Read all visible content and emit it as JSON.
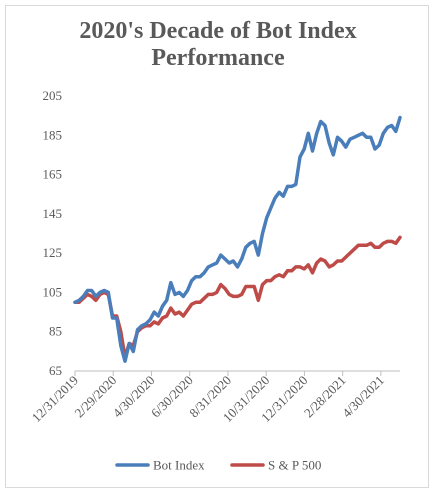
{
  "chart_data": {
    "type": "line",
    "title_line1": "2020's Decade of Bot Index",
    "title_line2": "Performance",
    "ylim": [
      65,
      205
    ],
    "y_ticks": [
      "205",
      "185",
      "165",
      "145",
      "125",
      "105",
      "85",
      "65"
    ],
    "x_tick_labels": [
      "12/31/2019",
      "2/29/2020",
      "4/30/2020",
      "6/30/2020",
      "8/31/2020",
      "10/31/2020",
      "12/31/2020",
      "2/28/2021",
      "4/30/2021"
    ],
    "legend_placement": "bottom",
    "grid": false,
    "series": [
      {
        "name": "Bot Index",
        "color": "#4a7ebb",
        "values": [
          100,
          101,
          103,
          106,
          106,
          103,
          105,
          106,
          105,
          92,
          92,
          78,
          70,
          79,
          75,
          86,
          88,
          89,
          91,
          95,
          93,
          98,
          101,
          110,
          104,
          105,
          103,
          106,
          111,
          113,
          113,
          115,
          118,
          119,
          120,
          124,
          122,
          120,
          121,
          118,
          122,
          128,
          130,
          131,
          124,
          135,
          143,
          148,
          153,
          156,
          154,
          159,
          159,
          160,
          174,
          178,
          186,
          177,
          186,
          192,
          190,
          181,
          175,
          184,
          182,
          179,
          183,
          184,
          185,
          186,
          184,
          184,
          178,
          180,
          186,
          189,
          190,
          187,
          194
        ]
      },
      {
        "name": "S & P 500",
        "color": "#be4b48",
        "values": [
          100,
          100,
          102,
          104,
          103,
          101,
          104,
          105,
          104,
          93,
          93,
          85,
          72,
          79,
          78,
          85,
          87,
          88,
          88,
          90,
          89,
          92,
          93,
          97,
          94,
          95,
          93,
          96,
          99,
          100,
          100,
          102,
          104,
          104,
          105,
          109,
          107,
          104,
          103,
          103,
          104,
          108,
          108,
          108,
          101,
          109,
          111,
          111,
          113,
          114,
          113,
          116,
          116,
          118,
          118,
          117,
          119,
          115,
          120,
          122,
          121,
          118,
          119,
          121,
          121,
          123,
          125,
          127,
          129,
          129,
          129,
          130,
          128,
          128,
          130,
          131,
          131,
          130,
          133
        ]
      }
    ]
  }
}
